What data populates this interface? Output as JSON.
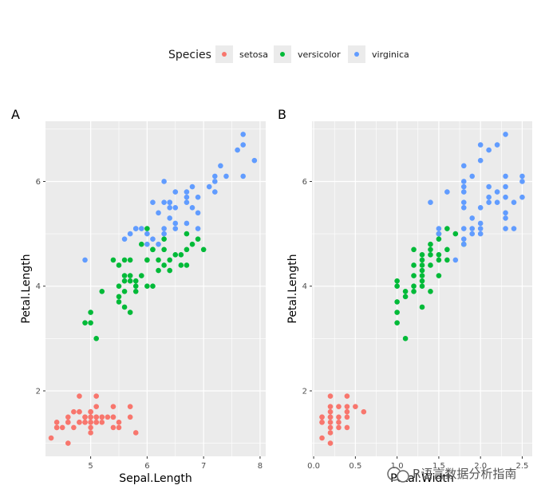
{
  "legend": {
    "title": "Species",
    "items": [
      {
        "label": "setosa",
        "color": "#F8766D"
      },
      {
        "label": "versicolor",
        "color": "#00BA38"
      },
      {
        "label": "virginica",
        "color": "#619CFF"
      }
    ]
  },
  "watermark": "R语言数据分析指南",
  "chart_data": [
    {
      "type": "scatter",
      "tag": "A",
      "xlabel": "Sepal.Length",
      "ylabel": "Petal.Length",
      "xlim": [
        4.2,
        8.1
      ],
      "ylim": [
        0.75,
        7.15
      ],
      "xticks": [
        5,
        6,
        7,
        8
      ],
      "yticks": [
        2,
        4,
        6
      ],
      "series": [
        {
          "name": "setosa",
          "color": "#F8766D",
          "points": [
            [
              4.3,
              1.1
            ],
            [
              4.4,
              1.4
            ],
            [
              4.4,
              1.3
            ],
            [
              4.4,
              1.3
            ],
            [
              4.5,
              1.3
            ],
            [
              4.6,
              1.4
            ],
            [
              4.6,
              1.5
            ],
            [
              4.6,
              1.0
            ],
            [
              4.6,
              1.4
            ],
            [
              4.7,
              1.3
            ],
            [
              4.7,
              1.6
            ],
            [
              4.8,
              1.6
            ],
            [
              4.8,
              1.4
            ],
            [
              4.8,
              1.6
            ],
            [
              4.8,
              1.4
            ],
            [
              4.8,
              1.9
            ],
            [
              4.9,
              1.4
            ],
            [
              4.9,
              1.5
            ],
            [
              4.9,
              1.5
            ],
            [
              4.9,
              1.4
            ],
            [
              5.0,
              1.4
            ],
            [
              5.0,
              1.5
            ],
            [
              5.0,
              1.6
            ],
            [
              5.0,
              1.2
            ],
            [
              5.0,
              1.3
            ],
            [
              5.0,
              1.6
            ],
            [
              5.0,
              1.4
            ],
            [
              5.0,
              1.5
            ],
            [
              5.1,
              1.4
            ],
            [
              5.1,
              1.5
            ],
            [
              5.1,
              1.9
            ],
            [
              5.1,
              1.7
            ],
            [
              5.1,
              1.5
            ],
            [
              5.1,
              1.4
            ],
            [
              5.2,
              1.5
            ],
            [
              5.2,
              1.4
            ],
            [
              5.2,
              1.5
            ],
            [
              5.3,
              1.5
            ],
            [
              5.4,
              1.7
            ],
            [
              5.4,
              1.5
            ],
            [
              5.4,
              1.3
            ],
            [
              5.4,
              1.5
            ],
            [
              5.5,
              1.4
            ],
            [
              5.5,
              1.3
            ],
            [
              5.7,
              1.7
            ],
            [
              5.7,
              1.5
            ],
            [
              5.8,
              1.2
            ]
          ]
        },
        {
          "name": "versicolor",
          "color": "#00BA38",
          "points": [
            [
              4.9,
              3.3
            ],
            [
              5.0,
              3.3
            ],
            [
              5.0,
              3.5
            ],
            [
              5.1,
              3.0
            ],
            [
              5.2,
              3.9
            ],
            [
              5.4,
              4.5
            ],
            [
              5.5,
              4.0
            ],
            [
              5.5,
              3.8
            ],
            [
              5.5,
              3.7
            ],
            [
              5.5,
              4.4
            ],
            [
              5.6,
              3.6
            ],
            [
              5.6,
              4.5
            ],
            [
              5.6,
              4.2
            ],
            [
              5.6,
              4.1
            ],
            [
              5.6,
              3.9
            ],
            [
              5.7,
              4.5
            ],
            [
              5.7,
              4.2
            ],
            [
              5.7,
              4.1
            ],
            [
              5.7,
              3.5
            ],
            [
              5.8,
              4.1
            ],
            [
              5.8,
              4.0
            ],
            [
              5.8,
              3.9
            ],
            [
              5.9,
              4.8
            ],
            [
              5.9,
              4.2
            ],
            [
              6.0,
              4.5
            ],
            [
              6.0,
              5.1
            ],
            [
              6.0,
              4.0
            ],
            [
              6.0,
              4.5
            ],
            [
              6.1,
              4.7
            ],
            [
              6.1,
              4.0
            ],
            [
              6.1,
              4.7
            ],
            [
              6.2,
              4.5
            ],
            [
              6.2,
              4.3
            ],
            [
              6.3,
              4.7
            ],
            [
              6.3,
              4.9
            ],
            [
              6.3,
              4.4
            ],
            [
              6.4,
              4.5
            ],
            [
              6.4,
              4.3
            ],
            [
              6.5,
              4.6
            ],
            [
              6.6,
              4.4
            ],
            [
              6.6,
              4.6
            ],
            [
              6.7,
              4.4
            ],
            [
              6.7,
              4.7
            ],
            [
              6.7,
              5.0
            ],
            [
              6.8,
              4.8
            ],
            [
              6.9,
              4.9
            ],
            [
              7.0,
              4.7
            ]
          ]
        },
        {
          "name": "virginica",
          "color": "#619CFF",
          "points": [
            [
              4.9,
              4.5
            ],
            [
              5.6,
              4.9
            ],
            [
              5.7,
              5.0
            ],
            [
              5.8,
              5.1
            ],
            [
              5.8,
              5.1
            ],
            [
              5.9,
              5.1
            ],
            [
              6.0,
              5.0
            ],
            [
              6.0,
              4.8
            ],
            [
              6.1,
              5.6
            ],
            [
              6.1,
              4.9
            ],
            [
              6.2,
              4.8
            ],
            [
              6.2,
              5.4
            ],
            [
              6.3,
              6.0
            ],
            [
              6.3,
              5.1
            ],
            [
              6.3,
              5.6
            ],
            [
              6.3,
              5.0
            ],
            [
              6.4,
              5.6
            ],
            [
              6.4,
              5.3
            ],
            [
              6.4,
              5.5
            ],
            [
              6.4,
              5.6
            ],
            [
              6.5,
              5.8
            ],
            [
              6.5,
              5.1
            ],
            [
              6.5,
              5.2
            ],
            [
              6.5,
              5.5
            ],
            [
              6.7,
              5.8
            ],
            [
              6.7,
              5.7
            ],
            [
              6.7,
              5.6
            ],
            [
              6.7,
              5.2
            ],
            [
              6.8,
              5.9
            ],
            [
              6.8,
              5.5
            ],
            [
              6.9,
              5.4
            ],
            [
              6.9,
              5.1
            ],
            [
              6.9,
              5.7
            ],
            [
              7.1,
              5.9
            ],
            [
              7.2,
              6.0
            ],
            [
              7.2,
              5.8
            ],
            [
              7.2,
              6.1
            ],
            [
              7.3,
              6.3
            ],
            [
              7.4,
              6.1
            ],
            [
              7.6,
              6.6
            ],
            [
              7.7,
              6.7
            ],
            [
              7.7,
              6.9
            ],
            [
              7.7,
              6.1
            ],
            [
              7.9,
              6.4
            ]
          ]
        }
      ]
    },
    {
      "type": "scatter",
      "tag": "B",
      "xlabel": "Petal.Width",
      "ylabel": "Petal.Length",
      "xlim": [
        -0.02,
        2.62
      ],
      "ylim": [
        0.75,
        7.15
      ],
      "xticks": [
        0.0,
        0.5,
        1.0,
        1.5,
        2.0,
        2.5
      ],
      "xtick_labels": [
        "0.0",
        "0.5",
        "1.0",
        "1.5",
        "2.0",
        "2.5"
      ],
      "yticks": [
        2,
        4,
        6
      ],
      "series": [
        {
          "name": "setosa",
          "color": "#F8766D",
          "points": [
            [
              0.1,
              1.1
            ],
            [
              0.1,
              1.4
            ],
            [
              0.1,
              1.5
            ],
            [
              0.1,
              1.5
            ],
            [
              0.1,
              1.4
            ],
            [
              0.2,
              1.0
            ],
            [
              0.2,
              1.2
            ],
            [
              0.2,
              1.3
            ],
            [
              0.2,
              1.4
            ],
            [
              0.2,
              1.5
            ],
            [
              0.2,
              1.6
            ],
            [
              0.2,
              1.7
            ],
            [
              0.2,
              1.9
            ],
            [
              0.2,
              1.5
            ],
            [
              0.3,
              1.3
            ],
            [
              0.3,
              1.4
            ],
            [
              0.3,
              1.5
            ],
            [
              0.3,
              1.7
            ],
            [
              0.4,
              1.3
            ],
            [
              0.4,
              1.5
            ],
            [
              0.4,
              1.7
            ],
            [
              0.4,
              1.9
            ],
            [
              0.4,
              1.6
            ],
            [
              0.5,
              1.7
            ],
            [
              0.6,
              1.6
            ]
          ]
        },
        {
          "name": "versicolor",
          "color": "#00BA38",
          "points": [
            [
              1.0,
              3.3
            ],
            [
              1.0,
              3.5
            ],
            [
              1.0,
              3.7
            ],
            [
              1.0,
              4.0
            ],
            [
              1.0,
              4.1
            ],
            [
              1.1,
              3.0
            ],
            [
              1.1,
              3.8
            ],
            [
              1.1,
              3.9
            ],
            [
              1.2,
              3.9
            ],
            [
              1.2,
              4.0
            ],
            [
              1.2,
              4.4
            ],
            [
              1.2,
              4.2
            ],
            [
              1.2,
              4.7
            ],
            [
              1.3,
              3.6
            ],
            [
              1.3,
              4.0
            ],
            [
              1.3,
              4.1
            ],
            [
              1.3,
              4.2
            ],
            [
              1.3,
              4.3
            ],
            [
              1.3,
              4.4
            ],
            [
              1.3,
              4.5
            ],
            [
              1.3,
              4.6
            ],
            [
              1.4,
              3.9
            ],
            [
              1.4,
              4.4
            ],
            [
              1.4,
              4.6
            ],
            [
              1.4,
              4.7
            ],
            [
              1.4,
              4.8
            ],
            [
              1.5,
              4.2
            ],
            [
              1.5,
              4.5
            ],
            [
              1.5,
              4.6
            ],
            [
              1.5,
              4.9
            ],
            [
              1.5,
              5.0
            ],
            [
              1.6,
              4.5
            ],
            [
              1.6,
              4.7
            ],
            [
              1.6,
              5.1
            ],
            [
              1.7,
              5.0
            ],
            [
              1.8,
              4.8
            ]
          ]
        },
        {
          "name": "virginica",
          "color": "#619CFF",
          "points": [
            [
              1.4,
              5.6
            ],
            [
              1.5,
              5.0
            ],
            [
              1.5,
              5.1
            ],
            [
              1.6,
              5.8
            ],
            [
              1.7,
              4.5
            ],
            [
              1.8,
              4.8
            ],
            [
              1.8,
              4.9
            ],
            [
              1.8,
              5.1
            ],
            [
              1.8,
              5.5
            ],
            [
              1.8,
              5.6
            ],
            [
              1.8,
              5.8
            ],
            [
              1.8,
              6.0
            ],
            [
              1.8,
              6.3
            ],
            [
              1.8,
              5.9
            ],
            [
              1.9,
              5.0
            ],
            [
              1.9,
              5.1
            ],
            [
              1.9,
              5.3
            ],
            [
              1.9,
              6.1
            ],
            [
              2.0,
              5.0
            ],
            [
              2.0,
              5.1
            ],
            [
              2.0,
              5.2
            ],
            [
              2.0,
              5.5
            ],
            [
              2.0,
              6.4
            ],
            [
              2.0,
              6.7
            ],
            [
              2.1,
              5.6
            ],
            [
              2.1,
              5.7
            ],
            [
              2.1,
              5.9
            ],
            [
              2.1,
              6.6
            ],
            [
              2.2,
              5.6
            ],
            [
              2.2,
              5.8
            ],
            [
              2.2,
              6.7
            ],
            [
              2.3,
              5.1
            ],
            [
              2.3,
              5.3
            ],
            [
              2.3,
              5.4
            ],
            [
              2.3,
              5.7
            ],
            [
              2.3,
              5.9
            ],
            [
              2.3,
              6.1
            ],
            [
              2.3,
              6.9
            ],
            [
              2.4,
              5.1
            ],
            [
              2.4,
              5.6
            ],
            [
              2.5,
              5.7
            ],
            [
              2.5,
              6.0
            ],
            [
              2.5,
              6.1
            ]
          ]
        }
      ]
    }
  ]
}
